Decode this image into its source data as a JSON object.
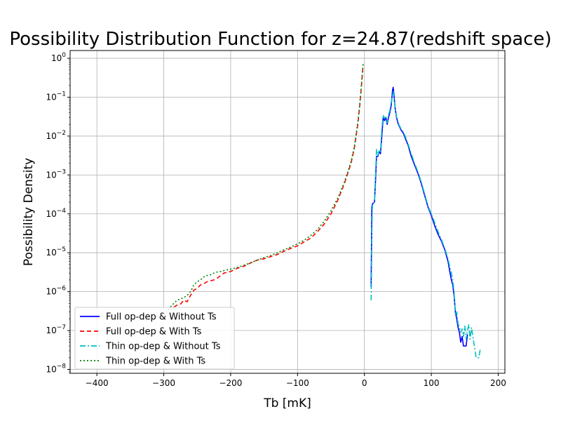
{
  "chart_data": {
    "type": "line",
    "title": "Possibility Distribution Function for z=24.87(redshift space)",
    "xlabel": "Tb [mK]",
    "ylabel": "Possibility Density",
    "xlim": [
      -440,
      210
    ],
    "ylim_log10": [
      -8.1,
      0.2
    ],
    "yscale": "log",
    "grid": true,
    "legend_position": "lower-left",
    "x_ticks": [
      -400,
      -300,
      -200,
      -100,
      0,
      100,
      200
    ],
    "x_tick_labels": [
      "−400",
      "−300",
      "−200",
      "−100",
      "0",
      "100",
      "200"
    ],
    "y_ticks": [
      0,
      -1,
      -2,
      -3,
      -4,
      -5,
      -6,
      -7,
      -8
    ],
    "series": [
      {
        "name": "Full op-dep & Without Ts",
        "color": "#0000ff",
        "dash": "solid",
        "points": [
          [
            10,
            1.3e-06
          ],
          [
            10.5,
            1e-05
          ],
          [
            11,
            0.00015
          ],
          [
            12,
            0.00018
          ],
          [
            15,
            0.0002
          ],
          [
            17,
            0.001
          ],
          [
            18,
            0.003
          ],
          [
            20,
            0.003
          ],
          [
            22,
            0.004
          ],
          [
            24,
            0.0035
          ],
          [
            26,
            0.01
          ],
          [
            28,
            0.03
          ],
          [
            30,
            0.025
          ],
          [
            32,
            0.03
          ],
          [
            34,
            0.02
          ],
          [
            36,
            0.03
          ],
          [
            38,
            0.04
          ],
          [
            40,
            0.06
          ],
          [
            42,
            0.15
          ],
          [
            43,
            0.18
          ],
          [
            44,
            0.12
          ],
          [
            46,
            0.05
          ],
          [
            48,
            0.03
          ],
          [
            50,
            0.022
          ],
          [
            52,
            0.018
          ],
          [
            55,
            0.014
          ],
          [
            58,
            0.012
          ],
          [
            62,
            0.008
          ],
          [
            65,
            0.006
          ],
          [
            70,
            0.003
          ],
          [
            75,
            0.0018
          ],
          [
            80,
            0.0011
          ],
          [
            85,
            0.0006
          ],
          [
            90,
            0.0003
          ],
          [
            95,
            0.00015
          ],
          [
            100,
            9e-05
          ],
          [
            105,
            5e-05
          ],
          [
            110,
            3e-05
          ],
          [
            115,
            2e-05
          ],
          [
            120,
            1.2e-05
          ],
          [
            125,
            6e-06
          ],
          [
            128,
            3e-06
          ],
          [
            130,
            2e-06
          ],
          [
            132,
            1.5e-06
          ],
          [
            134,
            8e-07
          ],
          [
            136,
            3e-07
          ],
          [
            138,
            2e-07
          ],
          [
            140,
            1.2e-07
          ],
          [
            142,
            9e-08
          ],
          [
            144,
            5e-08
          ],
          [
            146,
            7e-08
          ],
          [
            148,
            4e-08
          ],
          [
            152,
            4e-08
          ],
          [
            154,
            8e-08
          ]
        ]
      },
      {
        "name": "Full op-dep & With Ts",
        "color": "#ff0000",
        "dash": "6,4",
        "points": [
          [
            -285,
            4e-07
          ],
          [
            -280,
            4.5e-07
          ],
          [
            -275,
            4.8e-07
          ],
          [
            -270,
            6e-07
          ],
          [
            -265,
            5.5e-07
          ],
          [
            -260,
            8e-07
          ],
          [
            -255,
            1.1e-06
          ],
          [
            -250,
            1.2e-06
          ],
          [
            -245,
            1.5e-06
          ],
          [
            -240,
            1.6e-06
          ],
          [
            -235,
            1.8e-06
          ],
          [
            -230,
            1.9e-06
          ],
          [
            -225,
            2e-06
          ],
          [
            -220,
            2.2e-06
          ],
          [
            -215,
            2.6e-06
          ],
          [
            -210,
            3e-06
          ],
          [
            -200,
            3.3e-06
          ],
          [
            -190,
            4e-06
          ],
          [
            -180,
            4.5e-06
          ],
          [
            -170,
            5.5e-06
          ],
          [
            -160,
            6.5e-06
          ],
          [
            -150,
            7e-06
          ],
          [
            -140,
            8e-06
          ],
          [
            -130,
            9e-06
          ],
          [
            -120,
            1.1e-05
          ],
          [
            -110,
            1.3e-05
          ],
          [
            -100,
            1.5e-05
          ],
          [
            -90,
            1.9e-05
          ],
          [
            -80,
            2.4e-05
          ],
          [
            -70,
            3.5e-05
          ],
          [
            -60,
            5.5e-05
          ],
          [
            -50,
            0.0001
          ],
          [
            -40,
            0.00022
          ],
          [
            -30,
            0.0006
          ],
          [
            -20,
            0.002
          ],
          [
            -15,
            0.005
          ],
          [
            -10,
            0.02
          ],
          [
            -7,
            0.06
          ],
          [
            -5,
            0.15
          ],
          [
            -3,
            0.4
          ],
          [
            -2,
            0.7
          ]
        ]
      },
      {
        "name": "Thin op-dep & Without Ts",
        "color": "#00bfbf",
        "dash": "8,3,2,3",
        "points": [
          [
            10,
            6e-07
          ],
          [
            10.5,
            2e-06
          ],
          [
            11,
            3e-05
          ],
          [
            12,
            0.00017
          ],
          [
            15,
            0.0002
          ],
          [
            17,
            0.0015
          ],
          [
            18,
            0.0045
          ],
          [
            20,
            0.0032
          ],
          [
            22,
            0.0042
          ],
          [
            24,
            0.0038
          ],
          [
            26,
            0.015
          ],
          [
            28,
            0.035
          ],
          [
            30,
            0.028
          ],
          [
            32,
            0.033
          ],
          [
            34,
            0.022
          ],
          [
            36,
            0.035
          ],
          [
            38,
            0.045
          ],
          [
            40,
            0.07
          ],
          [
            42,
            0.12
          ],
          [
            43,
            0.14
          ],
          [
            44,
            0.1
          ],
          [
            46,
            0.05
          ],
          [
            48,
            0.032
          ],
          [
            50,
            0.024
          ],
          [
            52,
            0.019
          ],
          [
            55,
            0.015
          ],
          [
            58,
            0.013
          ],
          [
            62,
            0.009
          ],
          [
            65,
            0.0065
          ],
          [
            70,
            0.0035
          ],
          [
            75,
            0.002
          ],
          [
            80,
            0.0012
          ],
          [
            85,
            0.00065
          ],
          [
            90,
            0.00033
          ],
          [
            95,
            0.00016
          ],
          [
            100,
            0.0001
          ],
          [
            105,
            6e-05
          ],
          [
            110,
            3.5e-05
          ],
          [
            115,
            2.2e-05
          ],
          [
            120,
            1.3e-05
          ],
          [
            125,
            7e-06
          ],
          [
            128,
            4e-06
          ],
          [
            130,
            3e-06
          ],
          [
            132,
            2e-06
          ],
          [
            134,
            1e-06
          ],
          [
            136,
            2.5e-07
          ],
          [
            138,
            3e-07
          ],
          [
            140,
            1.5e-07
          ],
          [
            142,
            1.2e-07
          ],
          [
            144,
            9e-08
          ],
          [
            146,
            1.1e-07
          ],
          [
            148,
            7e-08
          ],
          [
            150,
            1.3e-07
          ],
          [
            152,
            6e-08
          ],
          [
            154,
            1e-07
          ],
          [
            156,
            1.4e-07
          ],
          [
            158,
            6e-08
          ],
          [
            160,
            1.2e-07
          ],
          [
            167,
            2e-08
          ],
          [
            171,
            2e-08
          ],
          [
            173,
            3.2e-08
          ]
        ]
      },
      {
        "name": "Thin op-dep & With Ts",
        "color": "#008000",
        "dash": "2,3",
        "points": [
          [
            -300,
            2.5e-07
          ],
          [
            -295,
            3e-07
          ],
          [
            -290,
            4e-07
          ],
          [
            -285,
            5e-07
          ],
          [
            -280,
            6e-07
          ],
          [
            -275,
            6.5e-07
          ],
          [
            -270,
            7e-07
          ],
          [
            -265,
            8e-07
          ],
          [
            -260,
            1e-06
          ],
          [
            -255,
            1.5e-06
          ],
          [
            -250,
            1.8e-06
          ],
          [
            -245,
            2e-06
          ],
          [
            -240,
            2.4e-06
          ],
          [
            -235,
            2.6e-06
          ],
          [
            -230,
            2.7e-06
          ],
          [
            -225,
            3e-06
          ],
          [
            -220,
            3.2e-06
          ],
          [
            -215,
            3.3e-06
          ],
          [
            -210,
            3.5e-06
          ],
          [
            -200,
            3.8e-06
          ],
          [
            -190,
            4.2e-06
          ],
          [
            -180,
            4.8e-06
          ],
          [
            -170,
            5.5e-06
          ],
          [
            -160,
            6.5e-06
          ],
          [
            -150,
            7.5e-06
          ],
          [
            -140,
            8.5e-06
          ],
          [
            -130,
            1e-05
          ],
          [
            -120,
            1.2e-05
          ],
          [
            -110,
            1.4e-05
          ],
          [
            -100,
            1.7e-05
          ],
          [
            -90,
            2.1e-05
          ],
          [
            -80,
            2.8e-05
          ],
          [
            -70,
            4e-05
          ],
          [
            -60,
            6.5e-05
          ],
          [
            -50,
            0.00012
          ],
          [
            -40,
            0.00025
          ],
          [
            -30,
            0.00065
          ],
          [
            -20,
            0.0022
          ],
          [
            -15,
            0.0055
          ],
          [
            -10,
            0.022
          ],
          [
            -7,
            0.065
          ],
          [
            -5,
            0.16
          ],
          [
            -3,
            0.42
          ],
          [
            -2,
            0.72
          ]
        ]
      }
    ]
  }
}
